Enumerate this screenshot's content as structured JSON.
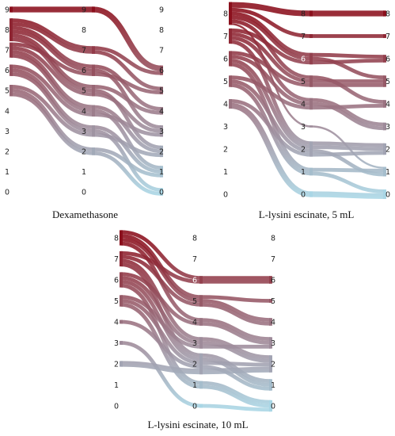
{
  "colors": {
    "high": "#8b0f1c",
    "low": "#a9d6e5"
  },
  "chart_data": [
    {
      "type": "sankey",
      "title": "Dexamethasone",
      "stages": 3,
      "stage_levels": [
        [
          "0",
          "1",
          "2",
          "3",
          "4",
          "5",
          "6",
          "7",
          "8",
          "9"
        ],
        [
          "0",
          "1",
          "2",
          "3",
          "4",
          "5",
          "6",
          "7",
          "8",
          "9"
        ],
        [
          "0",
          "1",
          "2",
          "3",
          "4",
          "5",
          "6",
          "7",
          "8",
          "9"
        ]
      ],
      "flows": [
        {
          "path": [
            9,
            9,
            6
          ],
          "weight": 3
        },
        {
          "path": [
            8,
            7,
            6
          ],
          "weight": 2
        },
        {
          "path": [
            8,
            7,
            5
          ],
          "weight": 2
        },
        {
          "path": [
            8,
            6,
            4
          ],
          "weight": 2
        },
        {
          "path": [
            8,
            6,
            3
          ],
          "weight": 2
        },
        {
          "path": [
            8,
            5,
            4
          ],
          "weight": 2
        },
        {
          "path": [
            8,
            5,
            2
          ],
          "weight": 2
        },
        {
          "path": [
            7,
            6,
            5
          ],
          "weight": 2
        },
        {
          "path": [
            7,
            5,
            3
          ],
          "weight": 2
        },
        {
          "path": [
            7,
            4,
            2
          ],
          "weight": 2
        },
        {
          "path": [
            7,
            4,
            1
          ],
          "weight": 2
        },
        {
          "path": [
            6,
            4,
            3
          ],
          "weight": 2
        },
        {
          "path": [
            6,
            3,
            1
          ],
          "weight": 2
        },
        {
          "path": [
            6,
            3,
            0
          ],
          "weight": 2
        },
        {
          "path": [
            5,
            3,
            2
          ],
          "weight": 2
        },
        {
          "path": [
            5,
            2,
            1
          ],
          "weight": 2
        },
        {
          "path": [
            5,
            2,
            0
          ],
          "weight": 2
        }
      ]
    },
    {
      "type": "sankey",
      "title": "L-lysini escinate, 5 mL",
      "stages": 3,
      "stage_levels": [
        [
          "0",
          "1",
          "2",
          "3",
          "4",
          "5",
          "6",
          "7",
          "8"
        ],
        [
          "0",
          "1",
          "2",
          "3",
          "4",
          "5",
          "6",
          "7",
          "8"
        ],
        [
          "0",
          "1",
          "2",
          "3",
          "4",
          "5",
          "6",
          "7",
          "8"
        ]
      ],
      "flows": [
        {
          "path": [
            8,
            8,
            8
          ],
          "weight": 3
        },
        {
          "path": [
            8,
            7,
            7
          ],
          "weight": 2
        },
        {
          "path": [
            8,
            6,
            6
          ],
          "weight": 2
        },
        {
          "path": [
            8,
            6,
            5
          ],
          "weight": 2
        },
        {
          "path": [
            8,
            5,
            4
          ],
          "weight": 2
        },
        {
          "path": [
            8,
            3,
            1
          ],
          "weight": 1
        },
        {
          "path": [
            7,
            6,
            6
          ],
          "weight": 2
        },
        {
          "path": [
            7,
            5,
            5
          ],
          "weight": 2
        },
        {
          "path": [
            7,
            4,
            3
          ],
          "weight": 2
        },
        {
          "path": [
            7,
            2,
            2
          ],
          "weight": 2
        },
        {
          "path": [
            6,
            5,
            5
          ],
          "weight": 2
        },
        {
          "path": [
            6,
            4,
            3
          ],
          "weight": 2
        },
        {
          "path": [
            6,
            2,
            2
          ],
          "weight": 2
        },
        {
          "path": [
            6,
            1,
            1
          ],
          "weight": 2
        },
        {
          "path": [
            5,
            4,
            4
          ],
          "weight": 2
        },
        {
          "path": [
            5,
            2,
            1
          ],
          "weight": 2
        },
        {
          "path": [
            5,
            1,
            0
          ],
          "weight": 2
        },
        {
          "path": [
            4,
            2,
            2
          ],
          "weight": 2
        },
        {
          "path": [
            4,
            0,
            0
          ],
          "weight": 3
        }
      ]
    },
    {
      "type": "sankey",
      "title": "L-lysini escinate, 10 mL",
      "stages": 3,
      "stage_levels": [
        [
          "0",
          "1",
          "2",
          "3",
          "4",
          "5",
          "6",
          "7",
          "8"
        ],
        [
          "0",
          "1",
          "2",
          "3",
          "4",
          "5",
          "6",
          "7",
          "8"
        ],
        [
          "0",
          "1",
          "2",
          "3",
          "4",
          "5",
          "6",
          "7",
          "8"
        ]
      ],
      "flows": [
        {
          "path": [
            8,
            6,
            6
          ],
          "weight": 2
        },
        {
          "path": [
            8,
            5,
            5
          ],
          "weight": 2
        },
        {
          "path": [
            8,
            5,
            4
          ],
          "weight": 2
        },
        {
          "path": [
            8,
            4,
            3
          ],
          "weight": 2
        },
        {
          "path": [
            7,
            6,
            6
          ],
          "weight": 2
        },
        {
          "path": [
            7,
            5,
            4
          ],
          "weight": 2
        },
        {
          "path": [
            7,
            3,
            2
          ],
          "weight": 2
        },
        {
          "path": [
            7,
            2,
            1
          ],
          "weight": 2
        },
        {
          "path": [
            6,
            4,
            3
          ],
          "weight": 2
        },
        {
          "path": [
            6,
            3,
            2
          ],
          "weight": 2
        },
        {
          "path": [
            6,
            2,
            1
          ],
          "weight": 2
        },
        {
          "path": [
            6,
            1,
            0
          ],
          "weight": 2
        },
        {
          "path": [
            5,
            3,
            3
          ],
          "weight": 2
        },
        {
          "path": [
            5,
            2,
            2
          ],
          "weight": 2
        },
        {
          "path": [
            5,
            1,
            0
          ],
          "weight": 2
        },
        {
          "path": [
            4,
            2,
            1
          ],
          "weight": 2
        },
        {
          "path": [
            3,
            0,
            0
          ],
          "weight": 2
        },
        {
          "path": [
            2,
            2,
            2
          ],
          "weight": 3
        }
      ]
    }
  ]
}
